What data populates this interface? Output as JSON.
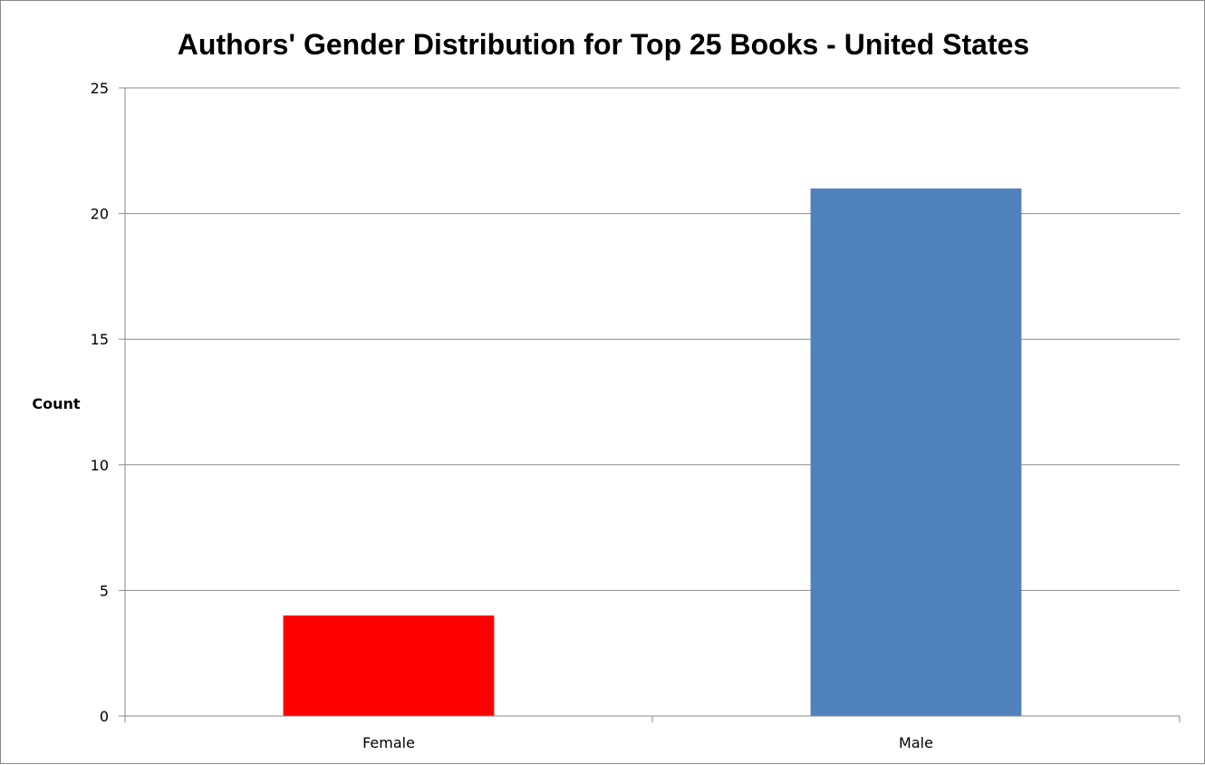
{
  "chart_data": {
    "type": "bar",
    "title": "Authors' Gender Distribution for Top 25 Books - United States",
    "xlabel": "",
    "ylabel": "Count",
    "categories": [
      "Female",
      "Male"
    ],
    "values": [
      4,
      21
    ],
    "bar_colors": [
      "#ff0000",
      "#4f81bd"
    ],
    "ylim": [
      0,
      25
    ],
    "yticks": [
      0,
      5,
      10,
      15,
      20,
      25
    ],
    "grid": true,
    "legend": "none"
  }
}
